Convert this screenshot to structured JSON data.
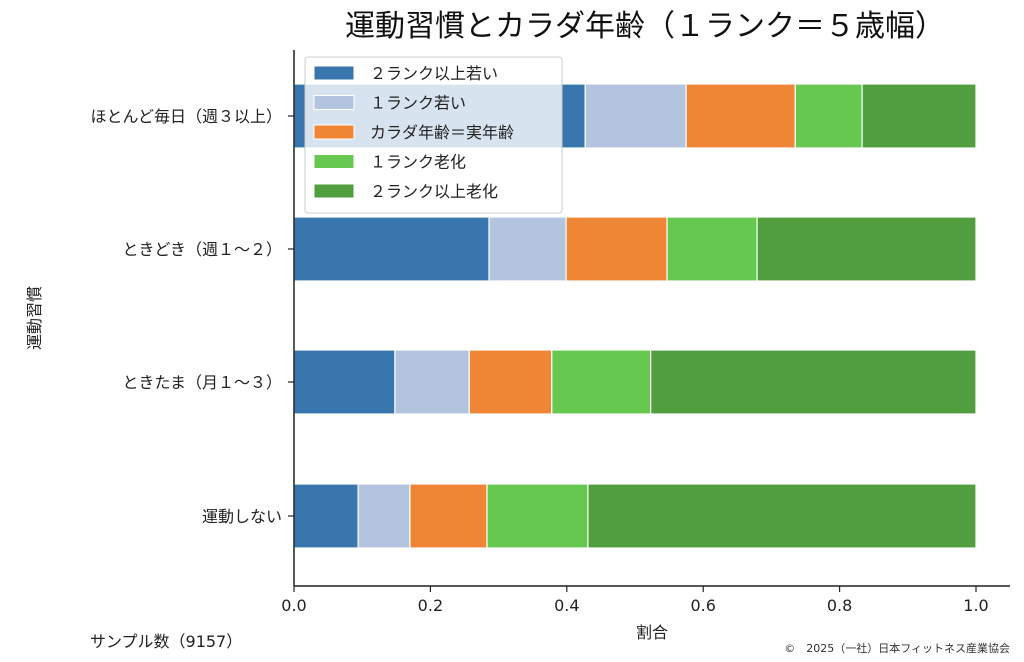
{
  "chart_data": {
    "type": "bar",
    "orientation": "horizontal-stacked",
    "title": "運動習慣とカラダ年齢（１ランク＝５歳幅）",
    "xlabel": "割合",
    "ylabel": "運動習慣",
    "xlim": [
      0,
      1.0
    ],
    "xticks": [
      "0.0",
      "0.2",
      "0.4",
      "0.6",
      "0.8",
      "1.0"
    ],
    "categories": [
      "ほとんど毎日（週３以上）",
      "ときどき（週１～２）",
      "ときたま（月１～３）",
      "運動しない"
    ],
    "series": [
      {
        "name": "２ランク以上若い",
        "color": "#3a76ae",
        "values": [
          0.427,
          0.286,
          0.148,
          0.094
        ]
      },
      {
        "name": "１ランク若い",
        "color": "#b3c4de",
        "values": [
          0.148,
          0.113,
          0.109,
          0.076
        ]
      },
      {
        "name": "カラダ年齢＝実年齢",
        "color": "#ef8636",
        "values": [
          0.16,
          0.148,
          0.121,
          0.113
        ]
      },
      {
        "name": "１ランク老化",
        "color": "#67c84f",
        "values": [
          0.098,
          0.132,
          0.145,
          0.148
        ]
      },
      {
        "name": "２ランク以上老化",
        "color": "#519e3e",
        "values": [
          0.167,
          0.321,
          0.477,
          0.569
        ]
      }
    ],
    "legend_position": "top-left",
    "grid": false
  },
  "footer": {
    "sample": "サンプル数（9157）",
    "copyright": "©　2025（一社）日本フィットネス産業協会"
  }
}
